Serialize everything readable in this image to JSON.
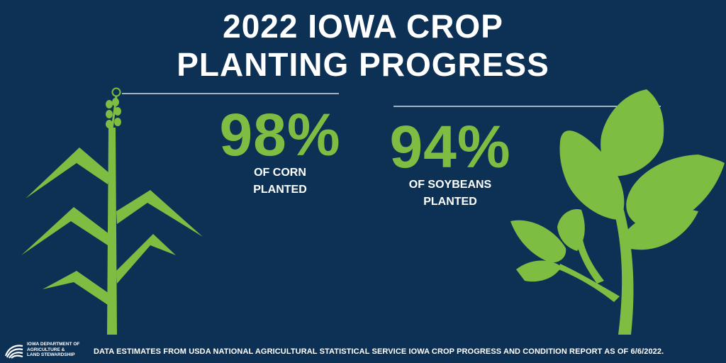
{
  "title": {
    "line1": "2022 IOWA CROP",
    "line2": "PLANTING PROGRESS"
  },
  "stats": [
    {
      "crop": "corn",
      "percent": 98,
      "value_text": "98%",
      "label_line1": "OF CORN",
      "label_line2": "PLANTED"
    },
    {
      "crop": "soybeans",
      "percent": 94,
      "value_text": "94%",
      "label_line1": "OF SOYBEANS",
      "label_line2": "PLANTED"
    }
  ],
  "logo": {
    "line1": "IOWA DEPARTMENT OF",
    "line2": "AGRICULTURE &",
    "line3": "LAND STEWARDSHIP"
  },
  "footnote": "DATA ESTIMATES FROM USDA NATIONAL AGRICULTURAL STATISTICAL SERVICE IOWA CROP PROGRESS AND CONDITION REPORT AS OF 6/6/2022.",
  "colors": {
    "background": "#0c3154",
    "accent_green": "#7cbd42",
    "text": "#ffffff"
  },
  "icons": [
    "corn-plant-icon",
    "soybean-plant-icon",
    "iowa-ag-logo-icon"
  ]
}
